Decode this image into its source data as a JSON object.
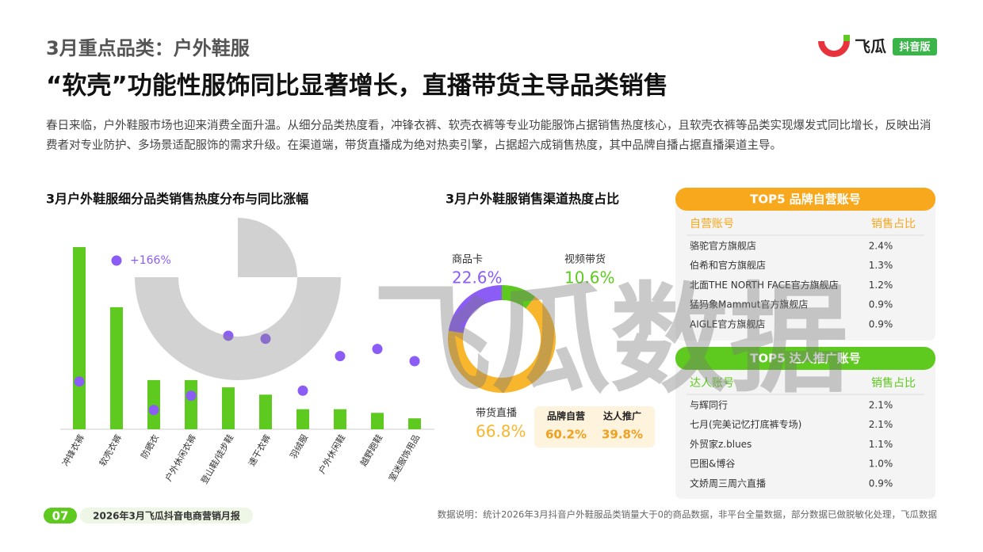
{
  "header": {
    "kicker": "3月重点品类：户外鞋服",
    "title": "“软壳”功能性服饰同比显著增长，直播带货主导品类销售",
    "logo": "飞瓜",
    "logo_badge": "抖音版"
  },
  "intro": "春日来临，户外鞋服市场也迎来消费全面升温。从细分品类热度看，冲锋衣裤、软壳衣裤等专业功能服饰占据销售热度核心，且软壳衣裤等品类实现爆发式同比增长，反映出消费者对专业防护、多场景适配服饰的需求升级。在渠道端，带货直播成为绝对热卖引擎，占据超六成销售热度，其中品牌自播占据直播渠道主导。",
  "watermark": "飞瓜数据",
  "chart_data": [
    {
      "type": "bar",
      "title": "3月户外鞋服细分品类销售热度分布与同比涨幅",
      "categories": [
        "冲锋衣裤",
        "软壳衣裤",
        "防晒衣",
        "户外休闲衣裤",
        "登山鞋/徒步鞋",
        "速干衣裤",
        "羽绒服",
        "户外休闲鞋",
        "越野跑鞋",
        "室迷服饰用品"
      ],
      "series": [
        {
          "type": "bar",
          "color": "#5ec91e",
          "values": [
            100,
            67,
            27,
            27,
            23,
            19,
            11,
            11,
            9,
            6
          ]
        },
        {
          "type": "scatter",
          "color": "#8b5cf6",
          "values": [
            47,
            166,
            19,
            33,
            92,
            89,
            38,
            72,
            79,
            67
          ],
          "value_labels": [
            null,
            "+166%",
            null,
            null,
            null,
            null,
            null,
            null,
            null,
            null
          ]
        }
      ]
    },
    {
      "type": "pie",
      "title": "3月户外鞋服销售渠道热度占比",
      "categories": [
        "视频带货",
        "带货直播",
        "商品卡"
      ],
      "values": [
        10.6,
        66.8,
        22.6
      ],
      "value_labels": [
        "10.6%",
        "66.8%",
        "22.6%"
      ],
      "colors": [
        "#5ec91e",
        "#f8b62d",
        "#8b5cf6"
      ]
    }
  ],
  "live_split": {
    "labels": [
      "品牌自营",
      "达人推广"
    ],
    "shares": [
      "60.2%",
      "39.8%"
    ]
  },
  "tables": [
    {
      "title": "TOP5 品牌自营账号",
      "columns": [
        "自营账号",
        "销售占比"
      ],
      "rows": [
        [
          "骆驼官方旗舰店",
          "2.4%"
        ],
        [
          "伯希和官方旗舰店",
          "1.3%"
        ],
        [
          "北面THE NORTH FACE官方旗舰店",
          "1.2%"
        ],
        [
          "猛犸象Mammut官方旗舰店",
          "0.9%"
        ],
        [
          "AIGLE官方旗舰店",
          "0.9%"
        ]
      ]
    },
    {
      "title": "TOP5 达人推广账号",
      "columns": [
        "达人账号",
        "销售占比"
      ],
      "rows": [
        [
          "与辉同行",
          "2.1%"
        ],
        [
          "七月(完美记忆打底裤专场)",
          "2.1%"
        ],
        [
          "外贸家z.blues",
          "1.1%"
        ],
        [
          "巴图&博谷",
          "1.0%"
        ],
        [
          "文娇周三周六直播",
          "0.9%"
        ]
      ]
    }
  ],
  "footer": {
    "page": "07",
    "report": "2026年3月飞瓜抖音电商营销月报",
    "note": "数据说明：统计2026年3月抖音户外鞋服品类销量大于0的商品数据，非平台全量数据，部分数据已做脱敏化处理，飞瓜数据"
  }
}
